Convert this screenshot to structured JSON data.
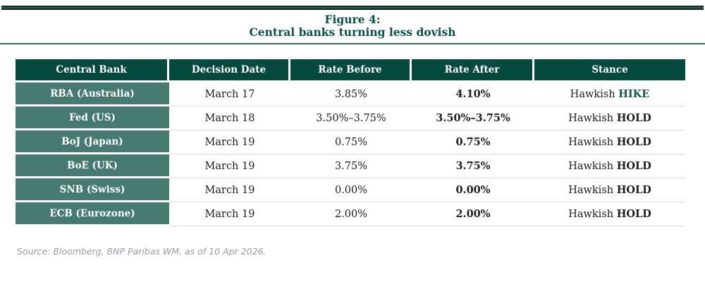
{
  "figure": {
    "title_line1": "Figure 4:",
    "title_line2": "Central banks turning less dovish"
  },
  "table": {
    "columns": [
      "Central Bank",
      "Decision Date",
      "Rate Before",
      "Rate After",
      "Stance"
    ],
    "rows": [
      {
        "bank": "RBA (Australia)",
        "decision_date": "March 17",
        "rate_before": "3.85%",
        "rate_after": "4.10%",
        "stance_prefix": "Hawkish",
        "stance_word": "HIKE",
        "stance_highlight": true
      },
      {
        "bank": "Fed (US)",
        "decision_date": "March 18",
        "rate_before": "3.50%–3.75%",
        "rate_after": "3.50%–3.75%",
        "stance_prefix": "Hawkish",
        "stance_word": "HOLD",
        "stance_highlight": false
      },
      {
        "bank": "BoJ (Japan)",
        "decision_date": "March 19",
        "rate_before": "0.75%",
        "rate_after": "0.75%",
        "stance_prefix": "Hawkish",
        "stance_word": "HOLD",
        "stance_highlight": false
      },
      {
        "bank": "BoE (UK)",
        "decision_date": "March 19",
        "rate_before": "3.75%",
        "rate_after": "3.75%",
        "stance_prefix": "Hawkish",
        "stance_word": "HOLD",
        "stance_highlight": false
      },
      {
        "bank": "SNB (Swiss)",
        "decision_date": "March 19",
        "rate_before": "0.00%",
        "rate_after": "0.00%",
        "stance_prefix": "Hawkish",
        "stance_word": "HOLD",
        "stance_highlight": false
      },
      {
        "bank": "ECB (Eurozone)",
        "decision_date": "March 19",
        "rate_before": "2.00%",
        "rate_after": "2.00%",
        "stance_prefix": "Hawkish",
        "stance_word": "HOLD",
        "stance_highlight": false
      }
    ]
  },
  "source": {
    "text": "Source: Bloomberg, BNP Paribas WM, as of 10 Apr 2026."
  },
  "colors": {
    "header_bg": "#06493f",
    "row_label_bg": "#467a70",
    "title_green": "#0c5048",
    "hike_green": "#15574d",
    "bar_teal": "#2d6157",
    "bar_edge": "#0f201e",
    "row_divider": "#d8d8d8",
    "source_gray": "#959ca3",
    "text_dark": "#202020"
  }
}
